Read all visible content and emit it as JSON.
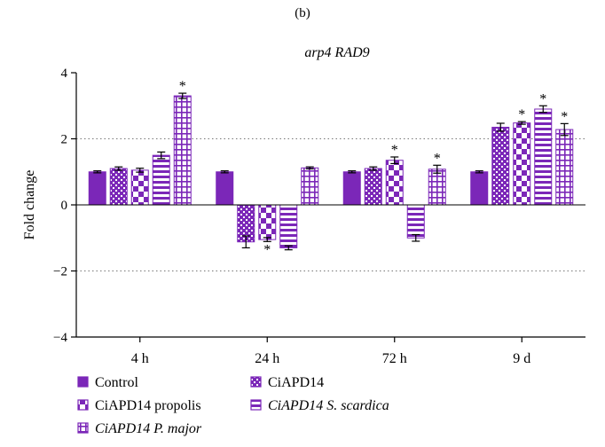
{
  "panel_label": "(b)",
  "chart_data": {
    "type": "bar",
    "title": "arp4 RAD9",
    "xlabel": "",
    "ylabel": "Fold change",
    "ylim": [
      -4,
      4
    ],
    "yticks": [
      4,
      2,
      0,
      -2,
      -4
    ],
    "ytick_labels": [
      "4",
      "2",
      "0",
      "−2",
      "−4"
    ],
    "grid": "dotted horizontal at ±2",
    "categories": [
      "4 h",
      "24 h",
      "72 h",
      "9 d"
    ],
    "colors": {
      "primary": "#7b27b8",
      "pattern_bg": "#ffffff",
      "axis": "#000000"
    },
    "series": [
      {
        "name": "Control",
        "pattern": "solid",
        "values": [
          1.0,
          1.0,
          1.0,
          1.0
        ],
        "errors": [
          0.03,
          0.03,
          0.03,
          0.03
        ],
        "significant": [
          false,
          false,
          false,
          false
        ]
      },
      {
        "name": "CiAPD14",
        "pattern": "dots",
        "values": [
          1.1,
          -1.12,
          1.1,
          2.35
        ],
        "errors": [
          0.05,
          0.18,
          0.05,
          0.12
        ],
        "significant": [
          false,
          false,
          false,
          false
        ]
      },
      {
        "name": "CiAPD14 propolis",
        "pattern": "checker",
        "values": [
          1.05,
          -1.05,
          1.35,
          2.48
        ],
        "errors": [
          0.06,
          0.06,
          0.1,
          0.04
        ],
        "significant": [
          false,
          true,
          true,
          true
        ]
      },
      {
        "name": "CiAPD14 S. scardica",
        "pattern": "hstripes",
        "values": [
          1.5,
          -1.3,
          -1.0,
          2.9
        ],
        "errors": [
          0.1,
          0.06,
          0.1,
          0.1
        ],
        "significant": [
          false,
          false,
          false,
          true
        ]
      },
      {
        "name": "CiAPD14 P. major",
        "pattern": "grid",
        "values": [
          3.3,
          1.12,
          1.08,
          2.28
        ],
        "errors": [
          0.08,
          0.03,
          0.12,
          0.18
        ],
        "significant": [
          true,
          false,
          true,
          true
        ]
      }
    ],
    "significance_marker": "*",
    "legend": {
      "placement": "bottom",
      "entries": [
        {
          "label": "Control",
          "pattern": "solid"
        },
        {
          "label": "CiAPD14",
          "pattern": "dots"
        },
        {
          "label": "CiAPD14 propolis",
          "pattern": "checker"
        },
        {
          "label": "CiAPD14 S. scardica",
          "pattern": "hstripes",
          "italic": true
        },
        {
          "label": "CiAPD14 P. major",
          "pattern": "grid",
          "italic": true
        }
      ]
    }
  }
}
